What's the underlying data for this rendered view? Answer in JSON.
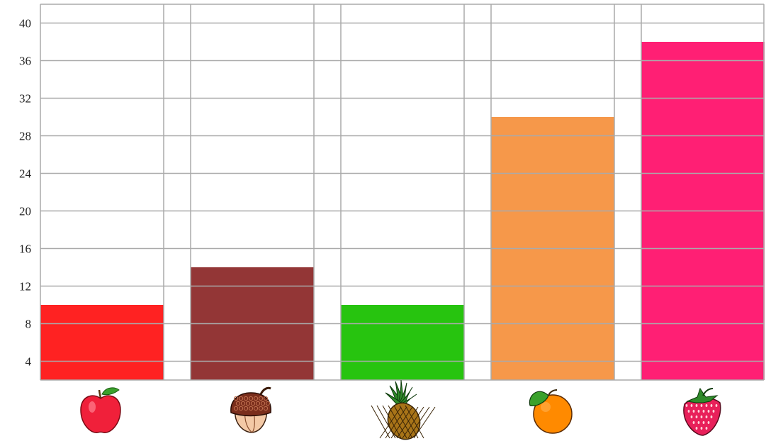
{
  "chart_data": {
    "type": "bar",
    "categories": [
      "apple",
      "acorn",
      "pineapple",
      "orange",
      "strawberry"
    ],
    "category_icons": [
      "apple-icon",
      "acorn-icon",
      "pineapple-icon",
      "orange-icon",
      "strawberry-icon"
    ],
    "values": [
      10,
      14,
      10,
      30,
      38
    ],
    "colors": [
      "#ff2222",
      "#933636",
      "#27c40f",
      "#f6984a",
      "#ff1f74"
    ],
    "yticks": [
      4,
      8,
      12,
      16,
      20,
      24,
      28,
      32,
      36,
      40
    ],
    "ylim": [
      2,
      42
    ],
    "grid": true,
    "grid_color": "#aaaaaa",
    "title": "",
    "xlabel": "",
    "ylabel": ""
  }
}
